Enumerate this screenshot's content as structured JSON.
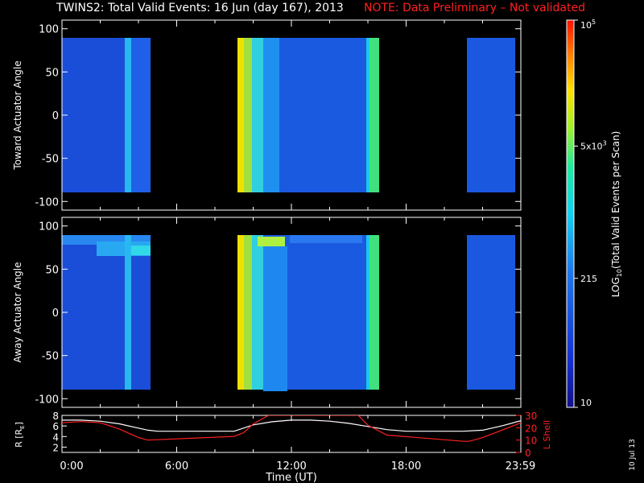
{
  "title": {
    "main": "TWINS2: Total Valid Events: 16 Jun (day 167), 2013",
    "note": "NOTE: Data Preliminary – Not validated",
    "note_color": "#ff2020"
  },
  "stamp": "10 Jul 13",
  "chart_data": [
    {
      "type": "heatmap",
      "panel": "top",
      "ylabel": "Toward Actuator Angle",
      "ylim": [
        -110,
        110
      ],
      "yticks": [
        "100",
        "50",
        "0",
        "-50",
        "-100"
      ],
      "xlim_hours": [
        0,
        24
      ],
      "data_coverage_hours": [
        [
          0,
          4.4
        ],
        [
          9.3,
          16.6
        ],
        [
          21.3,
          24
        ]
      ],
      "data_angle_range": [
        -88,
        90
      ],
      "enhancements": [
        {
          "start_h": 3.0,
          "end_h": 3.3,
          "level": "cyan"
        },
        {
          "start_h": 9.3,
          "end_h": 10.5,
          "level": "yellow-green"
        },
        {
          "start_h": 16.0,
          "end_h": 16.6,
          "level": "green"
        }
      ]
    },
    {
      "type": "heatmap",
      "panel": "middle",
      "ylabel": "Away Actuator Angle",
      "ylim": [
        -110,
        110
      ],
      "yticks": [
        "100",
        "50",
        "0",
        "-50",
        "-100"
      ],
      "xlim_hours": [
        0,
        24
      ],
      "data_coverage_hours": [
        [
          0,
          4.4
        ],
        [
          9.3,
          16.6
        ],
        [
          21.3,
          24
        ]
      ],
      "data_angle_range": [
        -88,
        90
      ]
    },
    {
      "type": "colorbar",
      "label_parts": {
        "pre": "LOG",
        "sub": "10",
        "post": "(Total Valid  Events per Scan)"
      },
      "tick_labels": [
        {
          "base": "10",
          "sup": "5",
          "value": 100000
        },
        {
          "base": "5x10",
          "sup": "3",
          "value": 5000
        },
        {
          "base": "215",
          "sup": "",
          "value": 215
        },
        {
          "base": "10",
          "sup": "",
          "value": 10
        }
      ],
      "range": [
        10,
        100000
      ]
    },
    {
      "type": "line",
      "panel": "bottom",
      "ylabel": "R [R",
      "ylabel_sub": "E",
      "ylabel_end": "]",
      "ylim": [
        1,
        8
      ],
      "yticks": [
        "8",
        "6",
        "4",
        "2"
      ],
      "y2label": "L Shell",
      "y2lim": [
        0,
        30
      ],
      "y2ticks": [
        "30",
        "20",
        "10",
        "0"
      ],
      "x_tick_labels": [
        "0:00",
        "6:00",
        "12:00",
        "18:00",
        "23:59"
      ],
      "x_tick_hours": [
        0,
        6,
        12,
        18,
        23.98
      ],
      "xlabel": "Time (UT)",
      "series": [
        {
          "color": "#ffffff",
          "x": [
            0,
            1,
            2,
            3,
            4,
            4.5,
            5,
            6,
            7,
            8,
            9,
            10,
            11,
            12,
            13,
            14,
            15,
            16,
            17,
            18,
            19,
            20,
            21,
            22,
            23,
            24
          ],
          "y": [
            7.1,
            7.1,
            6.9,
            6.4,
            5.6,
            5.2,
            5.0,
            5.0,
            5.0,
            5.0,
            5.0,
            6.2,
            6.8,
            7.1,
            7.1,
            6.9,
            6.5,
            5.9,
            5.3,
            5.0,
            5.0,
            5.0,
            5.0,
            5.2,
            6.0,
            7.0
          ]
        },
        {
          "color": "#ff2020",
          "axis": "right",
          "x": [
            0,
            1,
            2,
            3,
            4,
            4.5,
            9,
            9.5,
            10,
            10.8,
            15.5,
            16,
            17,
            21,
            21.3,
            22,
            23,
            24
          ],
          "y": [
            24,
            25,
            24,
            19,
            12,
            10,
            13,
            16,
            23,
            30,
            30,
            22,
            14,
            9,
            9,
            12,
            18,
            24
          ]
        }
      ]
    }
  ]
}
